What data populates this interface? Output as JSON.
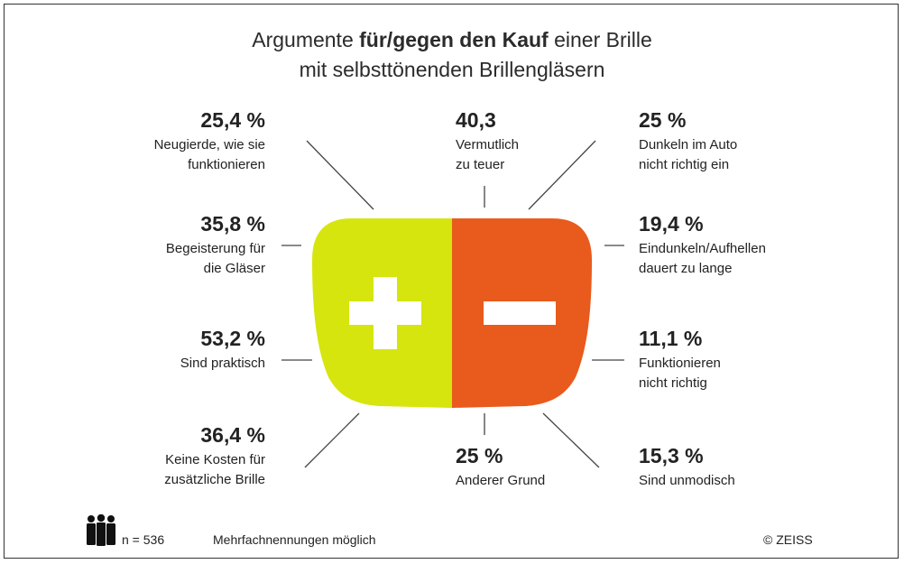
{
  "chart_data": {
    "type": "infographic",
    "title_parts": [
      {
        "text": "Argumente ",
        "bold": false
      },
      {
        "text": "für/gegen den Kauf",
        "bold": true
      },
      {
        "text": " einer Brille",
        "bold": false
      }
    ],
    "title_line2": "mit selbsttönenden Brillengläsern",
    "pro_symbol": "+",
    "con_symbol": "−",
    "colors": {
      "pro": "#d6e50e",
      "con": "#e95a1d",
      "line": "#444444"
    },
    "pro": [
      {
        "value": "25,4 %",
        "label_lines": [
          "Neugierde, wie sie",
          "funktionieren"
        ]
      },
      {
        "value": "35,8 %",
        "label_lines": [
          "Begeisterung für",
          "die Gläser"
        ]
      },
      {
        "value": "53,2 %",
        "label_lines": [
          "Sind praktisch"
        ]
      },
      {
        "value": "36,4 %",
        "label_lines": [
          "Keine Kosten für",
          "zusätzliche Brille"
        ]
      }
    ],
    "con_top": {
      "value": "40,3",
      "label_lines": [
        "Vermutlich",
        "zu teuer"
      ]
    },
    "con_bottom": {
      "value": "25 %",
      "label_lines": [
        "Anderer Grund"
      ]
    },
    "con": [
      {
        "value": "25 %",
        "label_lines": [
          "Dunkeln im Auto",
          "nicht richtig ein"
        ]
      },
      {
        "value": "19,4 %",
        "label_lines": [
          "Eindunkeln/Aufhellen",
          "dauert zu lange"
        ]
      },
      {
        "value": "11,1 %",
        "label_lines": [
          "Funktionieren",
          "nicht richtig"
        ]
      },
      {
        "value": "15,3 %",
        "label_lines": [
          "Sind unmodisch"
        ]
      }
    ]
  },
  "footer": {
    "sample": "n = 536",
    "note": "Mehrfachnennungen möglich",
    "copyright": "© ZEISS",
    "icon": "people-icon"
  }
}
